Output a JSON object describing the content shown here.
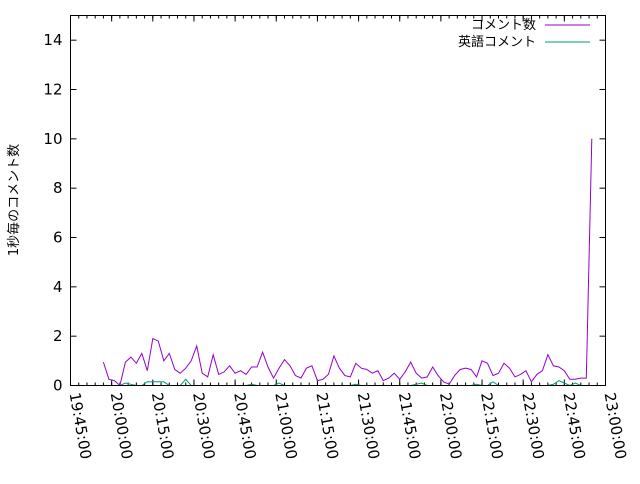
{
  "chart_data": {
    "type": "line",
    "title": "",
    "xlabel": "",
    "ylabel": "1秒毎のコメント数",
    "ylim": [
      0,
      15
    ],
    "yticks": [
      "0",
      "2",
      "4",
      "6",
      "8",
      "10",
      "12",
      "14"
    ],
    "xlim": [
      "19:45:00",
      "23:00:00"
    ],
    "xticks": [
      "19:45:00",
      "20:00:00",
      "20:15:00",
      "20:30:00",
      "20:45:00",
      "21:00:00",
      "21:15:00",
      "21:30:00",
      "21:45:00",
      "22:00:00",
      "22:15:00",
      "22:30:00",
      "22:45:00",
      "23:00:00"
    ],
    "grid": false,
    "legend_position": "top-right",
    "x": [
      "19:57",
      "19:59",
      "20:01",
      "20:03",
      "20:05",
      "20:07",
      "20:09",
      "20:11",
      "20:13",
      "20:15",
      "20:17",
      "20:19",
      "20:21",
      "20:23",
      "20:25",
      "20:27",
      "20:29",
      "20:31",
      "20:33",
      "20:35",
      "20:37",
      "20:39",
      "20:41",
      "20:43",
      "20:45",
      "20:47",
      "20:49",
      "20:51",
      "20:53",
      "20:55",
      "20:57",
      "20:59",
      "21:01",
      "21:03",
      "21:05",
      "21:07",
      "21:09",
      "21:11",
      "21:13",
      "21:15",
      "21:17",
      "21:19",
      "21:21",
      "21:23",
      "21:25",
      "21:27",
      "21:29",
      "21:31",
      "21:33",
      "21:35",
      "21:37",
      "21:39",
      "21:41",
      "21:43",
      "21:45",
      "21:47",
      "21:49",
      "21:51",
      "21:53",
      "21:55",
      "21:57",
      "21:59",
      "22:01",
      "22:03",
      "22:05",
      "22:07",
      "22:09",
      "22:11",
      "22:13",
      "22:15",
      "22:17",
      "22:19",
      "22:21",
      "22:23",
      "22:25",
      "22:27",
      "22:29",
      "22:31",
      "22:33",
      "22:35",
      "22:37",
      "22:39",
      "22:41",
      "22:43",
      "22:45",
      "22:47",
      "22:49",
      "22:51",
      "22:53",
      "22:55"
    ],
    "series": [
      {
        "name": "コメント数",
        "color": "#9400d3",
        "values": [
          0.95,
          0.25,
          0.2,
          0,
          0.95,
          1.15,
          0.9,
          1.3,
          0.6,
          1.9,
          1.8,
          1.0,
          1.3,
          0.65,
          0.5,
          0.7,
          1.0,
          1.6,
          0.5,
          0.35,
          1.25,
          0.45,
          0.55,
          0.8,
          0.5,
          0.6,
          0.45,
          0.75,
          0.75,
          1.35,
          0.75,
          0.3,
          0.7,
          1.05,
          0.8,
          0.4,
          0.3,
          0.7,
          0.8,
          0.2,
          0.25,
          0.45,
          1.2,
          0.7,
          0.4,
          0.35,
          0.9,
          0.7,
          0.65,
          0.5,
          0.6,
          0.2,
          0.3,
          0.5,
          0.25,
          0.55,
          0.95,
          0.5,
          0.3,
          0.35,
          0.75,
          0.4,
          0.15,
          0.05,
          0.4,
          0.65,
          0.7,
          0.65,
          0.35,
          1.0,
          0.9,
          0.4,
          0.5,
          0.9,
          0.7,
          0.35,
          0.45,
          0.6,
          0.15,
          0.45,
          0.6,
          1.25,
          0.8,
          0.75,
          0.6,
          0.25,
          0.25,
          0.3,
          0.3,
          10
        ]
      },
      {
        "name": "英語コメント",
        "color": "#009e73",
        "values": [
          0,
          0,
          0,
          0,
          0.1,
          0.05,
          0,
          0,
          0.15,
          0.15,
          0.15,
          0.15,
          0,
          0,
          0,
          0.25,
          0,
          0,
          0,
          0,
          0,
          0,
          0,
          0,
          0,
          0,
          0,
          0.05,
          0,
          0,
          0,
          0,
          0.1,
          0,
          0,
          0,
          0,
          0,
          0,
          0,
          0,
          0,
          0,
          0,
          0,
          0,
          0.05,
          0,
          0,
          0,
          0,
          0,
          0,
          0,
          0,
          0,
          0,
          0.05,
          0.1,
          0,
          0,
          0,
          0,
          0,
          0,
          0,
          0,
          0,
          0.05,
          0,
          0,
          0.15,
          0,
          0,
          0,
          0,
          0,
          0,
          0,
          0,
          0,
          0,
          0.05,
          0.2,
          0.1,
          0,
          0.1,
          0,
          0,
          0
        ]
      }
    ]
  }
}
